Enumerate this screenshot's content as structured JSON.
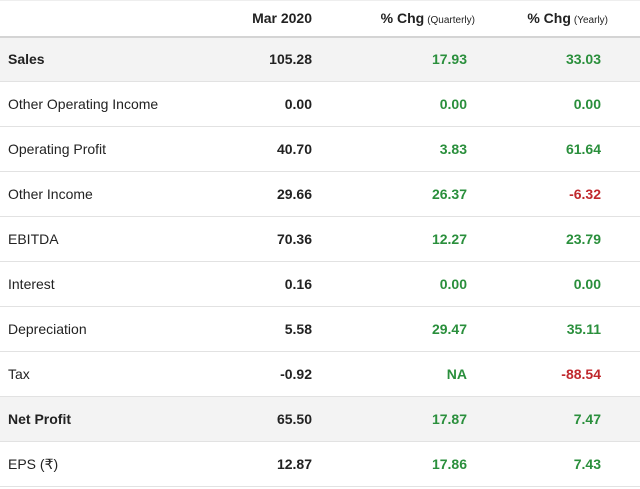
{
  "header": {
    "columns": [
      {
        "title": "Mar 2020"
      },
      {
        "title": "% Chg",
        "subtitle": "(Quarterly)"
      },
      {
        "title": "% Chg",
        "subtitle": "(Yearly)"
      }
    ]
  },
  "table": {
    "rows": [
      {
        "label": "Sales",
        "bold": true,
        "cells": [
          "105.28",
          "17.93",
          "33.03"
        ]
      },
      {
        "label": "Other Operating Income",
        "cells": [
          "0.00",
          "0.00",
          "0.00"
        ]
      },
      {
        "label": "Operating Profit",
        "cells": [
          "40.70",
          "3.83",
          "61.64"
        ]
      },
      {
        "label": "Other Income",
        "cells": [
          "29.66",
          "26.37",
          "-6.32"
        ]
      },
      {
        "label": "EBITDA",
        "cells": [
          "70.36",
          "12.27",
          "23.79"
        ]
      },
      {
        "label": "Interest",
        "cells": [
          "0.16",
          "0.00",
          "0.00"
        ]
      },
      {
        "label": "Depreciation",
        "cells": [
          "5.58",
          "29.47",
          "35.11"
        ]
      },
      {
        "label": "Tax",
        "cells": [
          "-0.92",
          "NA",
          "-88.54"
        ]
      },
      {
        "label": "Net Profit",
        "bold": true,
        "cells": [
          "65.50",
          "17.87",
          "7.47"
        ]
      },
      {
        "label": "EPS (₹)",
        "cells": [
          "12.87",
          "17.86",
          "7.43"
        ]
      }
    ]
  }
}
